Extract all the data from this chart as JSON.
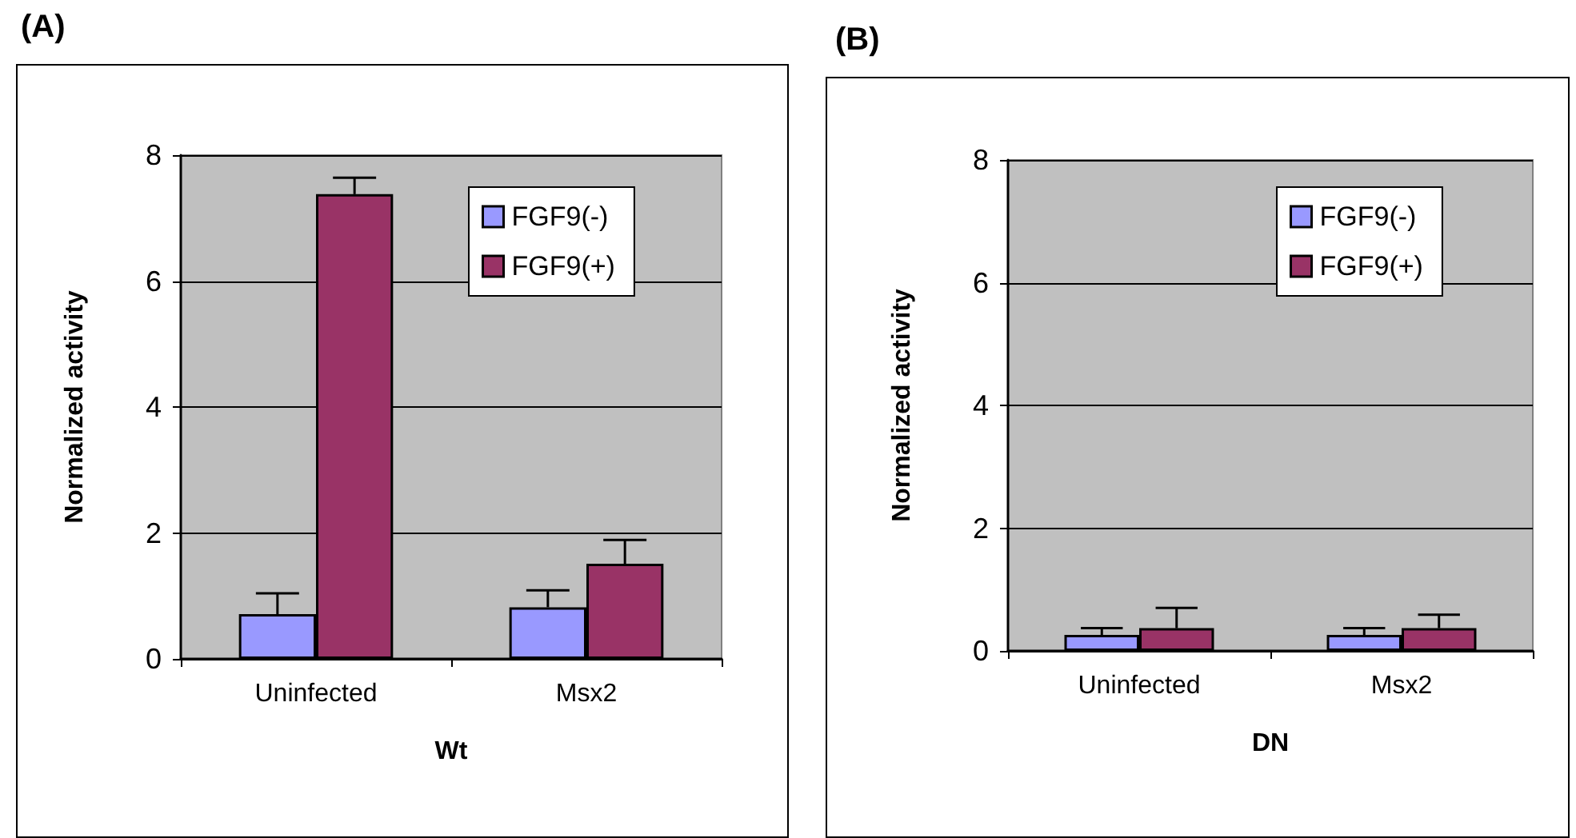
{
  "chart_data": [
    {
      "type": "bar",
      "title": "(A)",
      "xlabel": "Wt",
      "ylabel": "Normalized activity",
      "categories": [
        "Uninfected",
        "Msx2"
      ],
      "series": [
        {
          "name": "FGF9(-)",
          "color": "#9999ff",
          "values": [
            0.71,
            0.82
          ],
          "errors": [
            [
              0.71,
              1.04
            ],
            [
              0.82,
              1.09
            ]
          ]
        },
        {
          "name": "FGF9(+)",
          "color": "#993366",
          "values": [
            7.38,
            1.51
          ],
          "errors": [
            [
              7.38,
              7.64
            ],
            [
              1.51,
              1.89
            ]
          ]
        }
      ],
      "ylim": [
        0,
        8
      ],
      "yticks": [
        0,
        2,
        4,
        6,
        8
      ],
      "grid": "y",
      "legend": "top right"
    },
    {
      "type": "bar",
      "title": "(B)",
      "xlabel": "DN",
      "ylabel": "Normalized activity",
      "categories": [
        "Uninfected",
        "Msx2"
      ],
      "series": [
        {
          "name": "FGF9(-)",
          "color": "#9999ff",
          "values": [
            0.26,
            0.26
          ],
          "errors": [
            [
              0.26,
              0.37
            ],
            [
              0.26,
              0.37
            ]
          ]
        },
        {
          "name": "FGF9(+)",
          "color": "#993366",
          "values": [
            0.37,
            0.37
          ],
          "errors": [
            [
              0.37,
              0.7
            ],
            [
              0.37,
              0.59
            ]
          ]
        }
      ],
      "ylim": [
        0,
        8
      ],
      "yticks": [
        0,
        2,
        4,
        6,
        8
      ],
      "grid": "y",
      "legend": "top right"
    }
  ]
}
